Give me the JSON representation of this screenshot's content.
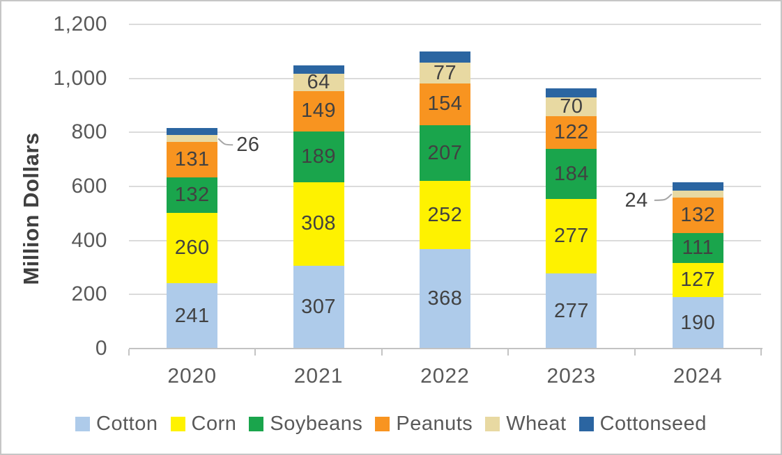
{
  "chart_data": {
    "type": "bar",
    "stacked": true,
    "title": "",
    "ylabel": "Million Dollars",
    "xlabel": "",
    "ylim": [
      0,
      1200
    ],
    "grid": true,
    "legend_position": "bottom",
    "yticks": [
      {
        "value": 0,
        "label": "0"
      },
      {
        "value": 200,
        "label": "200"
      },
      {
        "value": 400,
        "label": "400"
      },
      {
        "value": 600,
        "label": "600"
      },
      {
        "value": 800,
        "label": "800"
      },
      {
        "value": 1000,
        "label": "1,000"
      },
      {
        "value": 1200,
        "label": "1,200"
      }
    ],
    "categories": [
      "2020",
      "2021",
      "2022",
      "2023",
      "2024"
    ],
    "series": [
      {
        "name": "Cotton",
        "color": "#AECBEA",
        "values": [
          241,
          307,
          368,
          277,
          190
        ],
        "bar_labels": [
          "241",
          "307",
          "368",
          "277",
          "190"
        ]
      },
      {
        "name": "Corn",
        "color": "#FEF200",
        "values": [
          260,
          308,
          252,
          277,
          127
        ],
        "bar_labels": [
          "260",
          "308",
          "252",
          "277",
          "127"
        ]
      },
      {
        "name": "Soybeans",
        "color": "#1AA54C",
        "values": [
          132,
          189,
          207,
          184,
          111
        ],
        "bar_labels": [
          "132",
          "189",
          "207",
          "184",
          "111"
        ]
      },
      {
        "name": "Peanuts",
        "color": "#F89420",
        "values": [
          131,
          149,
          154,
          122,
          132
        ],
        "bar_labels": [
          "131",
          "149",
          "154",
          "122",
          "132"
        ]
      },
      {
        "name": "Wheat",
        "color": "#E8D9A2",
        "values": [
          26,
          64,
          77,
          70,
          24
        ],
        "bar_labels": [
          "",
          "64",
          "77",
          "70",
          ""
        ]
      },
      {
        "name": "Cottonseed",
        "color": "#2B65A1",
        "values": [
          26,
          31,
          42,
          33,
          31
        ],
        "bar_labels": [
          "",
          "",
          "",
          "",
          ""
        ]
      }
    ],
    "annotations": [
      {
        "text": "26",
        "category": "2020",
        "series": "Wheat",
        "side": "right"
      },
      {
        "text": "24",
        "category": "2024",
        "series": "Wheat",
        "side": "left"
      }
    ]
  },
  "style_colors": {
    "axis_text": "#595959",
    "bar_label_text": "#414141",
    "gridline": "#DBDBDB",
    "axis_line": "#C3C3C3",
    "leader_line": "#A6A6A6",
    "frame_border": "#C6C6C6",
    "background": "#FFFFFF"
  }
}
